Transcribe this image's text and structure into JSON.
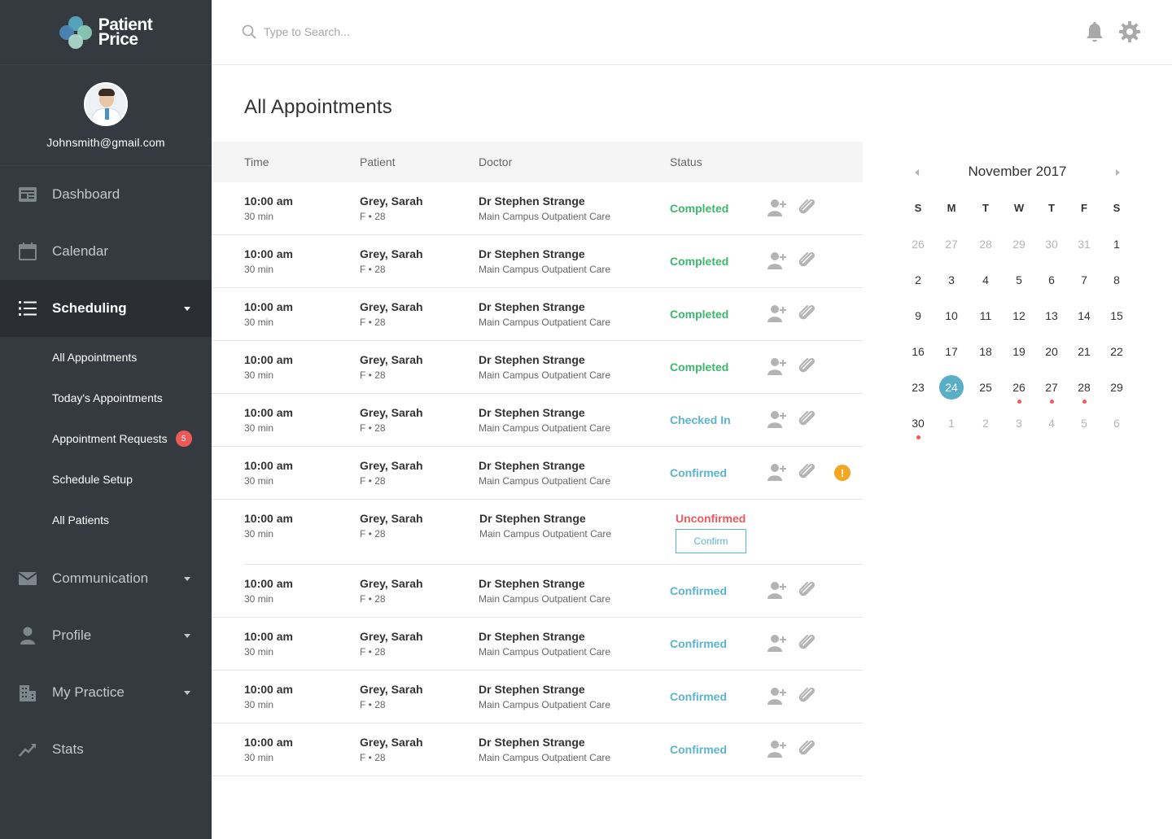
{
  "brand": {
    "line1": "Patient",
    "line2": "Price",
    "mark_colors": [
      "#5aafc7",
      "#8fd1bd",
      "#4e8fc4",
      "#b0dfd0"
    ]
  },
  "user": {
    "email": "Johnsmith@gmail.com"
  },
  "sidebar": {
    "items": [
      {
        "label": "Dashboard",
        "icon": "dashboard-icon"
      },
      {
        "label": "Calendar",
        "icon": "calendar-icon"
      },
      {
        "label": "Scheduling",
        "icon": "list-icon",
        "active": true
      },
      {
        "label": "Communication",
        "icon": "mail-icon"
      },
      {
        "label": "Profile",
        "icon": "person-icon"
      },
      {
        "label": "My Practice",
        "icon": "building-icon"
      },
      {
        "label": "Stats",
        "icon": "trend-icon"
      }
    ],
    "sub_items": [
      {
        "label": "All Appointments"
      },
      {
        "label": "Today's Appointments"
      },
      {
        "label": "Appointment Requests",
        "badge": "5"
      },
      {
        "label": "Schedule Setup"
      },
      {
        "label": "All Patients"
      }
    ]
  },
  "header": {
    "search_placeholder": "Type to Search..."
  },
  "main": {
    "title": "All Appointments",
    "columns": [
      "Time",
      "Patient",
      "Doctor",
      "Status"
    ],
    "rows": [
      {
        "time": "10:00 am",
        "duration": "30 min",
        "patient": "Grey, Sarah",
        "patient_info": "F • 28",
        "doctor": "Dr Stephen Strange",
        "location": "Main Campus Outpatient Care",
        "status": "Completed"
      },
      {
        "time": "10:00 am",
        "duration": "30 min",
        "patient": "Grey, Sarah",
        "patient_info": "F • 28",
        "doctor": "Dr Stephen Strange",
        "location": "Main Campus Outpatient Care",
        "status": "Completed"
      },
      {
        "time": "10:00 am",
        "duration": "30 min",
        "patient": "Grey, Sarah",
        "patient_info": "F • 28",
        "doctor": "Dr Stephen Strange",
        "location": "Main Campus Outpatient Care",
        "status": "Completed"
      },
      {
        "time": "10:00 am",
        "duration": "30 min",
        "patient": "Grey, Sarah",
        "patient_info": "F • 28",
        "doctor": "Dr Stephen Strange",
        "location": "Main Campus Outpatient Care",
        "status": "Completed"
      },
      {
        "time": "10:00 am",
        "duration": "30 min",
        "patient": "Grey, Sarah",
        "patient_info": "F • 28",
        "doctor": "Dr Stephen Strange",
        "location": "Main Campus Outpatient Care",
        "status": "Checked In"
      },
      {
        "time": "10:00 am",
        "duration": "30 min",
        "patient": "Grey, Sarah",
        "patient_info": "F • 28",
        "doctor": "Dr Stephen Strange",
        "location": "Main Campus Outpatient Care",
        "status": "Confirmed",
        "alert": "!"
      },
      {
        "time": "10:00 am",
        "duration": "30 min",
        "patient": "Grey, Sarah",
        "patient_info": "F • 28",
        "doctor": "Dr Stephen Strange",
        "location": "Main Campus Outpatient Care",
        "status": "Unconfirmed",
        "action": "Confirm"
      },
      {
        "time": "10:00 am",
        "duration": "30 min",
        "patient": "Grey, Sarah",
        "patient_info": "F • 28",
        "doctor": "Dr Stephen Strange",
        "location": "Main Campus Outpatient Care",
        "status": "Confirmed"
      },
      {
        "time": "10:00 am",
        "duration": "30 min",
        "patient": "Grey, Sarah",
        "patient_info": "F • 28",
        "doctor": "Dr Stephen Strange",
        "location": "Main Campus Outpatient Care",
        "status": "Confirmed"
      },
      {
        "time": "10:00 am",
        "duration": "30 min",
        "patient": "Grey, Sarah",
        "patient_info": "F • 28",
        "doctor": "Dr Stephen Strange",
        "location": "Main Campus Outpatient Care",
        "status": "Confirmed"
      },
      {
        "time": "10:00 am",
        "duration": "30 min",
        "patient": "Grey, Sarah",
        "patient_info": "F • 28",
        "doctor": "Dr Stephen Strange",
        "location": "Main Campus Outpatient Care",
        "status": "Confirmed"
      }
    ]
  },
  "calendar": {
    "title": "November 2017",
    "weekdays": [
      "S",
      "M",
      "T",
      "W",
      "T",
      "F",
      "S"
    ],
    "weeks": [
      [
        {
          "d": "26",
          "m": true
        },
        {
          "d": "27",
          "m": true
        },
        {
          "d": "28",
          "m": true
        },
        {
          "d": "29",
          "m": true
        },
        {
          "d": "30",
          "m": true
        },
        {
          "d": "31",
          "m": true
        },
        {
          "d": "1"
        }
      ],
      [
        {
          "d": "2"
        },
        {
          "d": "3"
        },
        {
          "d": "4"
        },
        {
          "d": "5"
        },
        {
          "d": "6"
        },
        {
          "d": "7"
        },
        {
          "d": "8"
        }
      ],
      [
        {
          "d": "9"
        },
        {
          "d": "10"
        },
        {
          "d": "11"
        },
        {
          "d": "12"
        },
        {
          "d": "13"
        },
        {
          "d": "14"
        },
        {
          "d": "15"
        }
      ],
      [
        {
          "d": "16"
        },
        {
          "d": "17"
        },
        {
          "d": "18"
        },
        {
          "d": "19"
        },
        {
          "d": "20"
        },
        {
          "d": "21"
        },
        {
          "d": "22"
        }
      ],
      [
        {
          "d": "23"
        },
        {
          "d": "24",
          "today": true
        },
        {
          "d": "25"
        },
        {
          "d": "26",
          "dot": true
        },
        {
          "d": "27",
          "dot": true
        },
        {
          "d": "28",
          "dot": true
        },
        {
          "d": "29"
        }
      ],
      [
        {
          "d": "30",
          "dot": true
        },
        {
          "d": "1",
          "m": true
        },
        {
          "d": "2",
          "m": true
        },
        {
          "d": "3",
          "m": true
        },
        {
          "d": "4",
          "m": true
        },
        {
          "d": "5",
          "m": true
        },
        {
          "d": "6",
          "m": true
        }
      ]
    ]
  },
  "colors": {
    "sidebar": "#353a40",
    "active": "#2a2e33",
    "completed": "#3cb86a",
    "confirmed": "#5bb4cf",
    "unconfirmed": "#ee5a5a",
    "today": "#5aafc7",
    "alert": "#f5a623"
  }
}
